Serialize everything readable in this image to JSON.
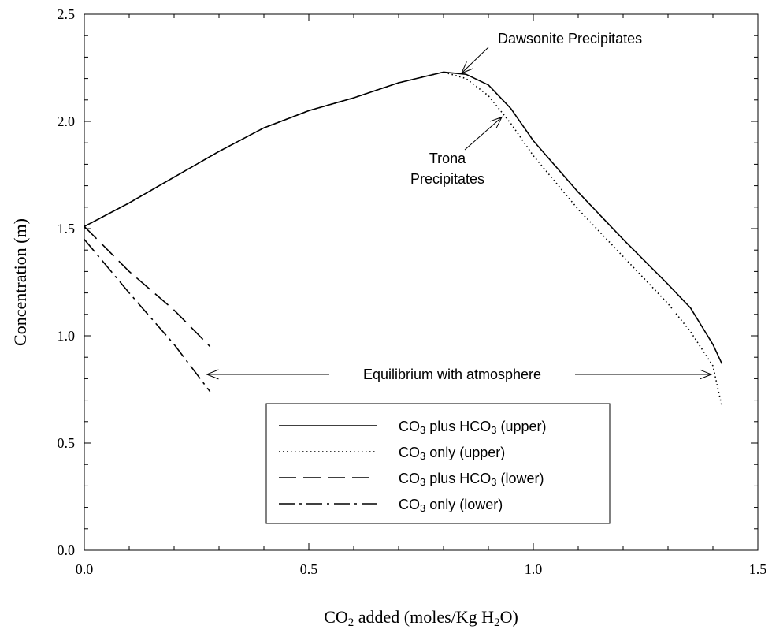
{
  "chart_data": {
    "type": "line",
    "xlabel": {
      "prefix": "CO",
      "sub1": "2",
      "middle": " added (moles/Kg H",
      "sub2": "2",
      "suffix": "O)"
    },
    "ylabel": "Concentration (m)",
    "xlim": [
      0,
      1.5
    ],
    "ylim": [
      0,
      2.5
    ],
    "x_ticks": [
      "0.0",
      "0.5",
      "1.0",
      "1.5"
    ],
    "y_ticks": [
      "0.0",
      "0.5",
      "1.0",
      "1.5",
      "2.0",
      "2.5"
    ],
    "grid": false,
    "legend_position": "bottom-center",
    "series": [
      {
        "name": {
          "a": "CO",
          "b": "3",
          "c": " plus HCO",
          "d": "3",
          "e": " (upper)"
        },
        "style": "solid",
        "points": [
          [
            0.0,
            1.51
          ],
          [
            0.1,
            1.62
          ],
          [
            0.2,
            1.74
          ],
          [
            0.3,
            1.86
          ],
          [
            0.4,
            1.97
          ],
          [
            0.5,
            2.05
          ],
          [
            0.6,
            2.11
          ],
          [
            0.7,
            2.18
          ],
          [
            0.8,
            2.23
          ],
          [
            0.85,
            2.22
          ],
          [
            0.9,
            2.17
          ],
          [
            0.95,
            2.06
          ],
          [
            1.0,
            1.91
          ],
          [
            1.1,
            1.67
          ],
          [
            1.2,
            1.45
          ],
          [
            1.3,
            1.24
          ],
          [
            1.35,
            1.13
          ],
          [
            1.4,
            0.96
          ],
          [
            1.42,
            0.87
          ]
        ]
      },
      {
        "name": {
          "a": "CO",
          "b": "3",
          "c": " only (upper)",
          "d": "",
          "e": ""
        },
        "style": "dotted",
        "points": [
          [
            0.0,
            1.51
          ],
          [
            0.1,
            1.62
          ],
          [
            0.2,
            1.74
          ],
          [
            0.3,
            1.86
          ],
          [
            0.4,
            1.97
          ],
          [
            0.5,
            2.05
          ],
          [
            0.6,
            2.11
          ],
          [
            0.7,
            2.18
          ],
          [
            0.8,
            2.23
          ],
          [
            0.85,
            2.2
          ],
          [
            0.9,
            2.12
          ],
          [
            0.95,
            1.99
          ],
          [
            1.0,
            1.84
          ],
          [
            1.1,
            1.59
          ],
          [
            1.2,
            1.37
          ],
          [
            1.3,
            1.15
          ],
          [
            1.35,
            1.02
          ],
          [
            1.4,
            0.86
          ],
          [
            1.42,
            0.67
          ]
        ]
      },
      {
        "name": {
          "a": "CO",
          "b": "3",
          "c": " plus HCO",
          "d": "3",
          "e": " (lower)"
        },
        "style": "dashed",
        "points": [
          [
            0.0,
            1.51
          ],
          [
            0.1,
            1.3
          ],
          [
            0.2,
            1.12
          ],
          [
            0.28,
            0.95
          ]
        ]
      },
      {
        "name": {
          "a": "CO",
          "b": "3",
          "c": " only (lower)",
          "d": "",
          "e": ""
        },
        "style": "dashdot",
        "points": [
          [
            0.0,
            1.45
          ],
          [
            0.1,
            1.2
          ],
          [
            0.2,
            0.96
          ],
          [
            0.28,
            0.74
          ]
        ]
      }
    ],
    "annotations": {
      "dawsonite": "Dawsonite Precipitates",
      "trona_line1": "Trona",
      "trona_line2": "Precipitates",
      "equilibrium": "Equilibrium with atmosphere"
    }
  }
}
